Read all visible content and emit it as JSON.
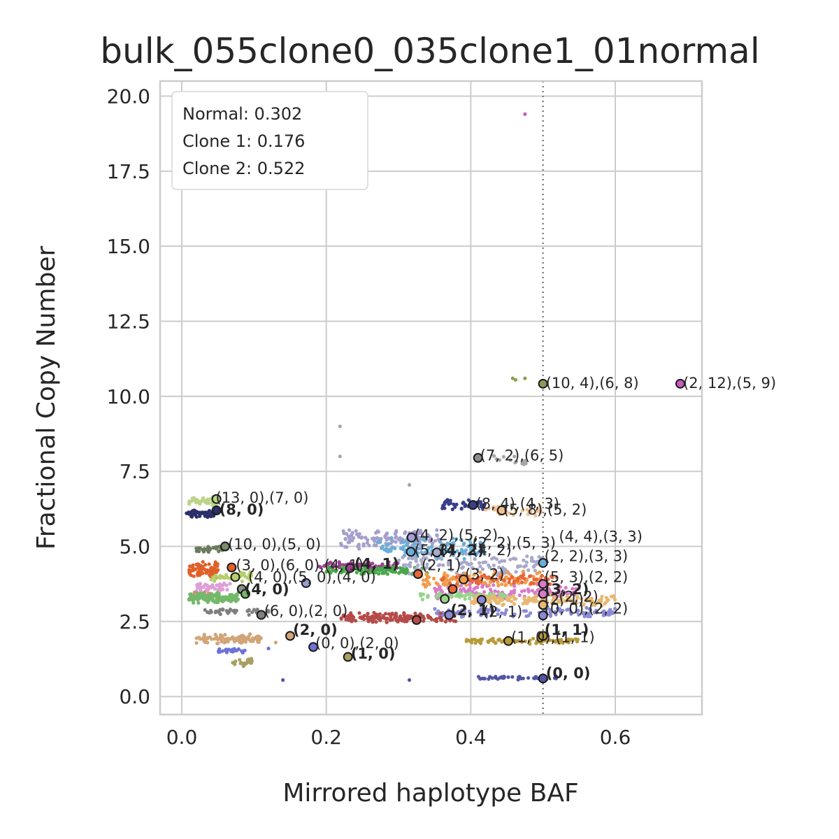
{
  "chart_data": {
    "type": "scatter",
    "title": "bulk_055clone0_035clone1_01normal",
    "xlabel": "Mirrored haplotype BAF",
    "ylabel": "Fractional Copy Number",
    "xlim": [
      -0.03,
      0.72
    ],
    "ylim": [
      -0.6,
      20.5
    ],
    "xticks": [
      "0.0",
      "0.2",
      "0.4",
      "0.6"
    ],
    "xtick_values": [
      0.0,
      0.2,
      0.4,
      0.6
    ],
    "yticks": [
      "0.0",
      "2.5",
      "5.0",
      "7.5",
      "10.0",
      "12.5",
      "15.0",
      "17.5",
      "20.0"
    ],
    "ytick_values": [
      0.0,
      2.5,
      5.0,
      7.5,
      10.0,
      12.5,
      15.0,
      17.5,
      20.0
    ],
    "grid": true,
    "vline": {
      "x": 0.5,
      "style": "dotted"
    },
    "legend": {
      "placement": "top-left",
      "lines": [
        "Normal: 0.302",
        "Clone 1: 0.176",
        "Clone 2: 0.522"
      ]
    },
    "clusters": [
      {
        "color": "#bcd48a",
        "x": [
          0.01,
          0.05
        ],
        "y": [
          6.3,
          6.7
        ],
        "n": 50
      },
      {
        "color": "#2b2f6b",
        "x": [
          0.005,
          0.045
        ],
        "y": [
          5.95,
          6.25
        ],
        "n": 50
      },
      {
        "color": "#6b7b5e",
        "x": [
          0.02,
          0.06
        ],
        "y": [
          4.8,
          5.05
        ],
        "n": 35
      },
      {
        "color": "#e0602a",
        "x": [
          0.01,
          0.05
        ],
        "y": [
          3.9,
          4.5
        ],
        "n": 80
      },
      {
        "color": "#b5cf6b",
        "x": [
          0.04,
          0.1
        ],
        "y": [
          3.8,
          4.2
        ],
        "n": 40
      },
      {
        "color": "#de9ed6",
        "x": [
          0.02,
          0.07
        ],
        "y": [
          3.5,
          3.8
        ],
        "n": 40
      },
      {
        "color": "#e7847e",
        "x": [
          0.01,
          0.04
        ],
        "y": [
          3.2,
          3.5
        ],
        "n": 30
      },
      {
        "color": "#74b86a",
        "x": [
          0.01,
          0.08
        ],
        "y": [
          3.1,
          3.5
        ],
        "n": 120
      },
      {
        "color": "#7f7f7f",
        "x": [
          0.03,
          0.12
        ],
        "y": [
          2.7,
          2.95
        ],
        "n": 35
      },
      {
        "color": "#d2a477",
        "x": [
          0.02,
          0.11
        ],
        "y": [
          1.75,
          2.1
        ],
        "n": 100
      },
      {
        "color": "#6f73d6",
        "x": [
          0.05,
          0.09
        ],
        "y": [
          1.45,
          1.6
        ],
        "n": 30
      },
      {
        "color": "#a8a060",
        "x": [
          0.07,
          0.1
        ],
        "y": [
          1.0,
          1.3
        ],
        "n": 25
      },
      {
        "color": "#a59fcf",
        "x": [
          0.22,
          0.36
        ],
        "y": [
          4.9,
          5.6
        ],
        "n": 140
      },
      {
        "color": "#6baed6",
        "x": [
          0.27,
          0.42
        ],
        "y": [
          4.5,
          5.3
        ],
        "n": 120
      },
      {
        "color": "#9c3f8f",
        "x": [
          0.19,
          0.3
        ],
        "y": [
          4.2,
          4.5
        ],
        "n": 80
      },
      {
        "color": "#49a84a",
        "x": [
          0.2,
          0.34
        ],
        "y": [
          4.05,
          4.35
        ],
        "n": 100
      },
      {
        "color": "#a9a9cc",
        "x": [
          0.3,
          0.5
        ],
        "y": [
          4.0,
          4.8
        ],
        "n": 120
      },
      {
        "color": "#f19c4a",
        "x": [
          0.33,
          0.5
        ],
        "y": [
          3.6,
          4.2
        ],
        "n": 120
      },
      {
        "color": "#e8663a",
        "x": [
          0.36,
          0.52
        ],
        "y": [
          3.7,
          4.1
        ],
        "n": 60
      },
      {
        "color": "#d87bc8",
        "x": [
          0.35,
          0.55
        ],
        "y": [
          3.2,
          3.8
        ],
        "n": 120
      },
      {
        "color": "#96d48a",
        "x": [
          0.33,
          0.45
        ],
        "y": [
          3.2,
          3.5
        ],
        "n": 60
      },
      {
        "color": "#e8b872",
        "x": [
          0.4,
          0.6
        ],
        "y": [
          3.0,
          3.4
        ],
        "n": 130
      },
      {
        "color": "#8a8ad6",
        "x": [
          0.35,
          0.6
        ],
        "y": [
          2.6,
          3.0
        ],
        "n": 120
      },
      {
        "color": "#b64a48",
        "x": [
          0.22,
          0.38
        ],
        "y": [
          2.45,
          2.8
        ],
        "n": 150
      },
      {
        "color": "#3a3f8a",
        "x": [
          0.36,
          0.42
        ],
        "y": [
          6.2,
          6.6
        ],
        "n": 40
      },
      {
        "color": "#f2c090",
        "x": [
          0.42,
          0.5
        ],
        "y": [
          6.0,
          6.4
        ],
        "n": 30
      },
      {
        "color": "#a6a6a6",
        "x": [
          0.42,
          0.48
        ],
        "y": [
          7.7,
          8.2
        ],
        "n": 15
      },
      {
        "color": "#b99a3a",
        "x": [
          0.39,
          0.55
        ],
        "y": [
          1.75,
          1.95
        ],
        "n": 90
      },
      {
        "color": "#5255a6",
        "x": [
          0.4,
          0.52
        ],
        "y": [
          0.55,
          0.7
        ],
        "n": 40
      }
    ],
    "outliers": [
      {
        "x": 0.475,
        "y": 19.4,
        "color": "#c85bbf"
      },
      {
        "x": 0.458,
        "y": 10.6,
        "color": "#8aa04a"
      },
      {
        "x": 0.462,
        "y": 10.55,
        "color": "#8aa04a"
      },
      {
        "x": 0.475,
        "y": 10.6,
        "color": "#8aa04a"
      },
      {
        "x": 0.219,
        "y": 9.0,
        "color": "#a6a6a6"
      },
      {
        "x": 0.219,
        "y": 8.0,
        "color": "#a6a6a6"
      },
      {
        "x": 0.315,
        "y": 7.05,
        "color": "#a6a6a6"
      },
      {
        "x": 0.14,
        "y": 0.55,
        "color": "#5255a6"
      },
      {
        "x": 0.315,
        "y": 0.55,
        "color": "#5255a6"
      },
      {
        "x": 0.12,
        "y": 1.6,
        "color": "#6f73d6"
      },
      {
        "x": 0.13,
        "y": 1.8,
        "color": "#d2a477"
      }
    ],
    "centroids": [
      {
        "x": 0.048,
        "y": 6.58,
        "fill": "#bcd48a"
      },
      {
        "x": 0.048,
        "y": 6.2,
        "fill": "#2b2f6b"
      },
      {
        "x": 0.06,
        "y": 5.0,
        "fill": "#7b8c6a"
      },
      {
        "x": 0.069,
        "y": 4.3,
        "fill": "#e0602a"
      },
      {
        "x": 0.074,
        "y": 3.98,
        "fill": "#b5cf6b"
      },
      {
        "x": 0.083,
        "y": 3.58,
        "fill": "#8c8c8c"
      },
      {
        "x": 0.088,
        "y": 3.42,
        "fill": "#74b86a"
      },
      {
        "x": 0.11,
        "y": 2.72,
        "fill": "#7f7f7f"
      },
      {
        "x": 0.15,
        "y": 2.02,
        "fill": "#d2a477"
      },
      {
        "x": 0.182,
        "y": 1.65,
        "fill": "#6f73d6"
      },
      {
        "x": 0.23,
        "y": 1.32,
        "fill": "#a8a060"
      },
      {
        "x": 0.172,
        "y": 3.78,
        "fill": "#9c9ccf"
      },
      {
        "x": 0.233,
        "y": 4.28,
        "fill": "#9c3f8f"
      },
      {
        "x": 0.317,
        "y": 4.82,
        "fill": "#6baed6"
      },
      {
        "x": 0.318,
        "y": 5.3,
        "fill": "#a59fcf"
      },
      {
        "x": 0.353,
        "y": 4.8,
        "fill": "#a9a9cc"
      },
      {
        "x": 0.327,
        "y": 4.08,
        "fill": "#e8663a"
      },
      {
        "x": 0.39,
        "y": 3.9,
        "fill": "#f19c4a"
      },
      {
        "x": 0.375,
        "y": 3.58,
        "fill": "#e8663a"
      },
      {
        "x": 0.364,
        "y": 3.25,
        "fill": "#96d48a"
      },
      {
        "x": 0.37,
        "y": 2.72,
        "fill": "#8a8ad6"
      },
      {
        "x": 0.325,
        "y": 2.55,
        "fill": "#b64a48"
      },
      {
        "x": 0.415,
        "y": 3.22,
        "fill": "#8a8ad6"
      },
      {
        "x": 0.403,
        "y": 6.38,
        "fill": "#3a3f8a"
      },
      {
        "x": 0.443,
        "y": 6.2,
        "fill": "#f2c090"
      },
      {
        "x": 0.41,
        "y": 7.95,
        "fill": "#8c8c8c"
      },
      {
        "x": 0.452,
        "y": 1.85,
        "fill": "#b99a3a"
      },
      {
        "x": 0.5,
        "y": 10.42,
        "fill": "#8a9a5a"
      },
      {
        "x": 0.69,
        "y": 10.42,
        "fill": "#c85bbf"
      },
      {
        "x": 0.5,
        "y": 4.45,
        "fill": "#6baed6"
      },
      {
        "x": 0.5,
        "y": 3.75,
        "fill": "#d87bc8"
      },
      {
        "x": 0.5,
        "y": 3.42,
        "fill": "#d87bc8"
      },
      {
        "x": 0.5,
        "y": 3.05,
        "fill": "#e8b872"
      },
      {
        "x": 0.5,
        "y": 2.7,
        "fill": "#8a8ad6"
      },
      {
        "x": 0.5,
        "y": 2.02,
        "fill": "#b99a3a"
      },
      {
        "x": 0.5,
        "y": 0.6,
        "fill": "#5255a6"
      }
    ],
    "annotations": [
      {
        "text": "(10, 4),(6, 8)",
        "x": 0.502,
        "y": 10.42,
        "bold": false
      },
      {
        "text": "(2, 12),(5, 9)",
        "x": 0.692,
        "y": 10.42,
        "bold": false
      },
      {
        "text": "(7, 2),(6, 5)",
        "x": 0.411,
        "y": 8.0,
        "bold": false
      },
      {
        "text": "(13, 0),(7, 0)",
        "x": 0.045,
        "y": 6.6,
        "bold": false
      },
      {
        "text": "(8, 0)",
        "x": 0.05,
        "y": 6.2,
        "bold": true
      },
      {
        "text": "(8, 4),(4, 3)",
        "x": 0.405,
        "y": 6.4,
        "bold": false
      },
      {
        "text": "(5, 8),(5, 2)",
        "x": 0.443,
        "y": 6.2,
        "bold": false
      },
      {
        "text": "(4, 2),(5, 2)",
        "x": 0.32,
        "y": 5.35,
        "bold": false
      },
      {
        "text": "(2, 2),(5, 3)",
        "x": 0.4,
        "y": 5.1,
        "bold": false
      },
      {
        "text": "(10, 0),(5, 0)",
        "x": 0.062,
        "y": 5.05,
        "bold": false
      },
      {
        "text": "(5, 3)",
        "x": 0.32,
        "y": 4.85,
        "bold": false
      },
      {
        "text": "(4, 2)",
        "x": 0.355,
        "y": 4.85,
        "bold": true
      },
      {
        "text": "(4, 2)",
        "x": 0.4,
        "y": 4.85,
        "bold": false
      },
      {
        "text": "(4, 4),(3, 3)",
        "x": 0.52,
        "y": 5.3,
        "bold": false
      },
      {
        "text": "(2, 2),(3, 3)",
        "x": 0.5,
        "y": 4.65,
        "bold": false
      },
      {
        "text": "(3, 0),(6, 0),(4, 1)",
        "x": 0.073,
        "y": 4.35,
        "bold": false
      },
      {
        "text": "(4, 1)",
        "x": 0.237,
        "y": 4.4,
        "bold": true
      },
      {
        "text": "(2, 1)",
        "x": 0.33,
        "y": 4.35,
        "bold": false
      },
      {
        "text": "(4, 0),(5, 0),(4, 0)",
        "x": 0.09,
        "y": 3.95,
        "bold": false
      },
      {
        "text": "(3, 2)",
        "x": 0.39,
        "y": 4.05,
        "bold": false
      },
      {
        "text": "(4, 0)",
        "x": 0.085,
        "y": 3.55,
        "bold": true
      },
      {
        "text": "(5, 3),(2, 2)",
        "x": 0.5,
        "y": 3.95,
        "bold": false
      },
      {
        "text": "(3, 2)",
        "x": 0.5,
        "y": 3.55,
        "bold": true
      },
      {
        "text": "(2, 1)",
        "x": 0.5,
        "y": 3.2,
        "bold": false
      },
      {
        "text": "(2, 2)",
        "x": 0.52,
        "y": 3.3,
        "bold": false
      },
      {
        "text": "(6, 0),(2, 0)",
        "x": 0.112,
        "y": 2.82,
        "bold": false
      },
      {
        "text": "(2, 1)",
        "x": 0.37,
        "y": 2.85,
        "bold": true
      },
      {
        "text": "(2, 1)",
        "x": 0.415,
        "y": 2.8,
        "bold": false
      },
      {
        "text": "(0, 0),(2, 2)",
        "x": 0.5,
        "y": 2.9,
        "bold": false
      },
      {
        "text": "(2, 0)",
        "x": 0.152,
        "y": 2.2,
        "bold": true
      },
      {
        "text": "(1, 1)",
        "x": 0.5,
        "y": 2.2,
        "bold": true
      },
      {
        "text": "(1, 0),(1, 1)",
        "x": 0.454,
        "y": 1.95,
        "bold": false
      },
      {
        "text": "(0, 0),(2, 0)",
        "x": 0.183,
        "y": 1.75,
        "bold": false
      },
      {
        "text": "(1, 0)",
        "x": 0.232,
        "y": 1.4,
        "bold": true
      },
      {
        "text": "(0, 0)",
        "x": 0.502,
        "y": 0.75,
        "bold": true
      }
    ]
  }
}
